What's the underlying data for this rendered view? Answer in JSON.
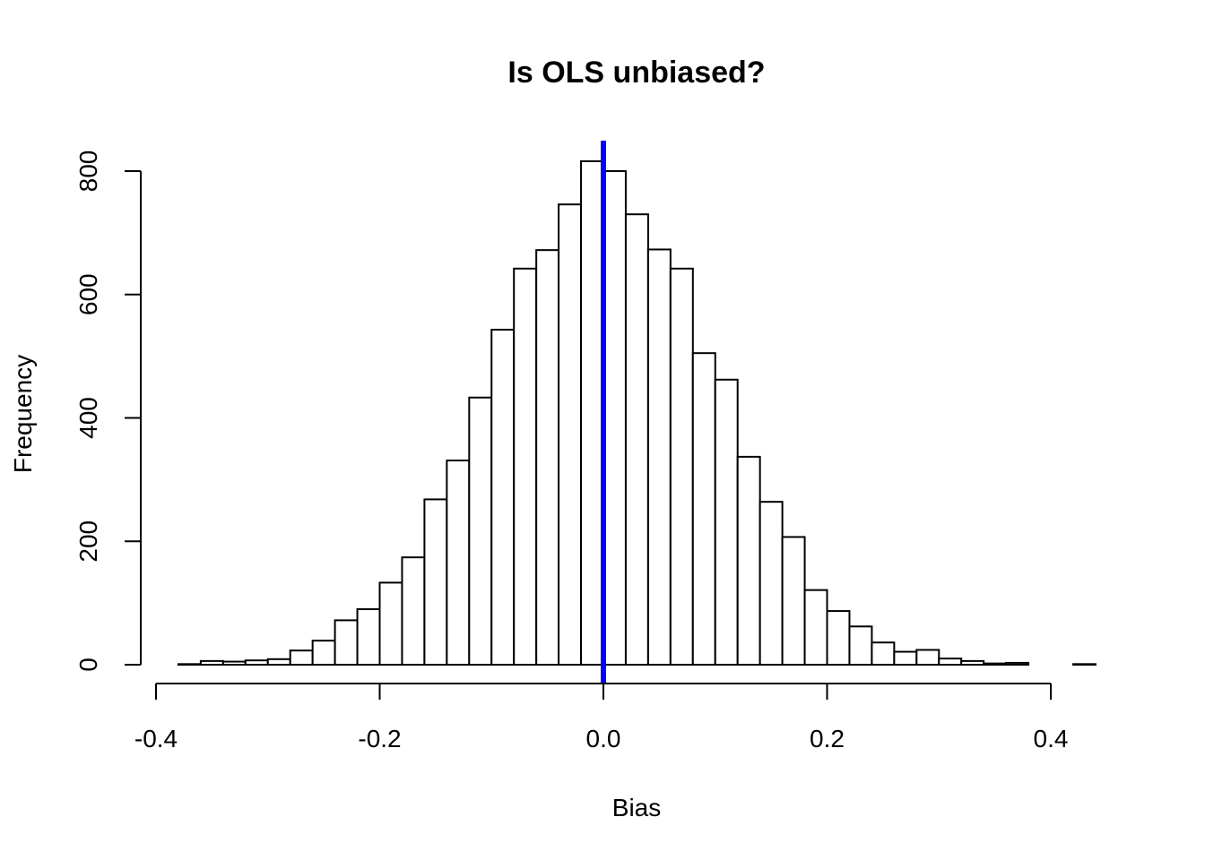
{
  "chart_data": {
    "type": "bar",
    "title": "Is OLS unbiased?",
    "xlabel": "Bias",
    "ylabel": "Frequency",
    "xlim": [
      -0.4,
      0.4
    ],
    "ylim": [
      0,
      800
    ],
    "xticks": [
      "-0.4",
      "-0.2",
      "0.0",
      "0.2",
      "0.4"
    ],
    "yticks": [
      "0",
      "200",
      "400",
      "600",
      "800"
    ],
    "bin_width": 0.02,
    "bin_start": -0.38,
    "values": [
      1,
      6,
      5,
      7,
      9,
      23,
      39,
      72,
      90,
      133,
      174,
      268,
      331,
      433,
      543,
      642,
      672,
      746,
      816,
      800,
      730,
      673,
      642,
      505,
      462,
      337,
      264,
      207,
      121,
      87,
      62,
      36,
      21,
      24,
      10,
      6,
      2,
      3,
      0,
      0,
      1
    ],
    "reference_line": {
      "x": 0.0,
      "color": "#0000ff"
    },
    "grid": false,
    "legend": "none",
    "bar_fill": "#ffffff",
    "bar_stroke": "#000000"
  }
}
